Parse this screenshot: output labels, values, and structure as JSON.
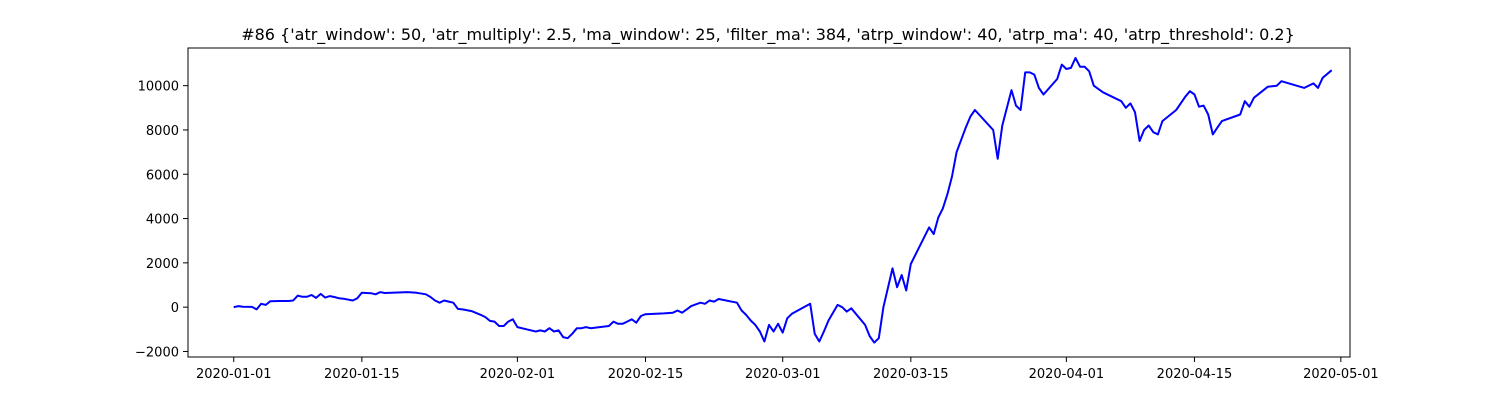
{
  "chart_data": {
    "type": "line",
    "title": "#86 {'atr_window': 50, 'atr_multiply': 2.5, 'ma_window': 25, 'filter_ma': 384, 'atrp_window': 40, 'atrp_ma': 40, 'atrp_threshold': 0.2}",
    "xlabel": "",
    "ylabel": "",
    "xlim": [
      "2019-12-27",
      "2020-05-02"
    ],
    "ylim": [
      -2250,
      11700
    ],
    "x_ticks": [
      "2020-01-01",
      "2020-01-15",
      "2020-02-01",
      "2020-02-15",
      "2020-03-01",
      "2020-03-15",
      "2020-04-01",
      "2020-04-15",
      "2020-05-01"
    ],
    "y_ticks": [
      -2000,
      0,
      2000,
      4000,
      6000,
      8000,
      10000
    ],
    "grid": false,
    "legend": "none",
    "series": [
      {
        "color": "#0000ff",
        "points": [
          [
            "2020-01-01",
            0
          ],
          [
            "2020-01-01T12:00",
            50
          ],
          [
            "2020-01-02",
            20
          ],
          [
            "2020-01-03",
            10
          ],
          [
            "2020-01-03T12:00",
            -100
          ],
          [
            "2020-01-04",
            150
          ],
          [
            "2020-01-04T12:00",
            100
          ],
          [
            "2020-01-05",
            270
          ],
          [
            "2020-01-06",
            280
          ],
          [
            "2020-01-07",
            280
          ],
          [
            "2020-01-07T12:00",
            300
          ],
          [
            "2020-01-08",
            520
          ],
          [
            "2020-01-08T12:00",
            470
          ],
          [
            "2020-01-09",
            470
          ],
          [
            "2020-01-09T12:00",
            550
          ],
          [
            "2020-01-10",
            420
          ],
          [
            "2020-01-10T12:00",
            600
          ],
          [
            "2020-01-11",
            430
          ],
          [
            "2020-01-11T12:00",
            500
          ],
          [
            "2020-01-12",
            460
          ],
          [
            "2020-01-12T12:00",
            400
          ],
          [
            "2020-01-13",
            380
          ],
          [
            "2020-01-14",
            300
          ],
          [
            "2020-01-14T12:00",
            400
          ],
          [
            "2020-01-15",
            650
          ],
          [
            "2020-01-16",
            630
          ],
          [
            "2020-01-16T12:00",
            580
          ],
          [
            "2020-01-17",
            680
          ],
          [
            "2020-01-17T12:00",
            640
          ],
          [
            "2020-01-20",
            680
          ],
          [
            "2020-01-21",
            650
          ],
          [
            "2020-01-22",
            580
          ],
          [
            "2020-01-22T12:00",
            460
          ],
          [
            "2020-01-23",
            300
          ],
          [
            "2020-01-23T12:00",
            200
          ],
          [
            "2020-01-24",
            300
          ],
          [
            "2020-01-24T12:00",
            250
          ],
          [
            "2020-01-25",
            200
          ],
          [
            "2020-01-25T12:00",
            -80
          ],
          [
            "2020-01-26",
            -100
          ],
          [
            "2020-01-27",
            -180
          ],
          [
            "2020-01-28",
            -350
          ],
          [
            "2020-01-28T12:00",
            -450
          ],
          [
            "2020-01-29",
            -620
          ],
          [
            "2020-01-29T12:00",
            -650
          ],
          [
            "2020-01-30",
            -850
          ],
          [
            "2020-01-30T12:00",
            -850
          ],
          [
            "2020-01-31",
            -650
          ],
          [
            "2020-01-31T12:00",
            -550
          ],
          [
            "2020-02-01",
            -900
          ],
          [
            "2020-02-02",
            -1000
          ],
          [
            "2020-02-03",
            -1100
          ],
          [
            "2020-02-03T12:00",
            -1050
          ],
          [
            "2020-02-04",
            -1100
          ],
          [
            "2020-02-04T12:00",
            -950
          ],
          [
            "2020-02-05",
            -1100
          ],
          [
            "2020-02-05T12:00",
            -1050
          ],
          [
            "2020-02-06",
            -1350
          ],
          [
            "2020-02-06T12:00",
            -1400
          ],
          [
            "2020-02-07",
            -1200
          ],
          [
            "2020-02-07T12:00",
            -950
          ],
          [
            "2020-02-08",
            -950
          ],
          [
            "2020-02-08T12:00",
            -900
          ],
          [
            "2020-02-09",
            -950
          ],
          [
            "2020-02-10",
            -900
          ],
          [
            "2020-02-11",
            -850
          ],
          [
            "2020-02-11T12:00",
            -650
          ],
          [
            "2020-02-12",
            -750
          ],
          [
            "2020-02-12T12:00",
            -750
          ],
          [
            "2020-02-13",
            -650
          ],
          [
            "2020-02-13T12:00",
            -550
          ],
          [
            "2020-02-14",
            -700
          ],
          [
            "2020-02-14T12:00",
            -400
          ],
          [
            "2020-02-15",
            -320
          ],
          [
            "2020-02-17",
            -280
          ],
          [
            "2020-02-18",
            -250
          ],
          [
            "2020-02-18T12:00",
            -150
          ],
          [
            "2020-02-19",
            -250
          ],
          [
            "2020-02-19T12:00",
            -100
          ],
          [
            "2020-02-20",
            50
          ],
          [
            "2020-02-21",
            200
          ],
          [
            "2020-02-21T12:00",
            150
          ],
          [
            "2020-02-22",
            300
          ],
          [
            "2020-02-22T12:00",
            250
          ],
          [
            "2020-02-23",
            370
          ],
          [
            "2020-02-25",
            200
          ],
          [
            "2020-02-25T12:00",
            -150
          ],
          [
            "2020-02-26",
            -350
          ],
          [
            "2020-02-26T12:00",
            -600
          ],
          [
            "2020-02-27",
            -800
          ],
          [
            "2020-02-27T12:00",
            -1100
          ],
          [
            "2020-02-28",
            -1550
          ],
          [
            "2020-02-28T12:00",
            -800
          ],
          [
            "2020-02-29",
            -1100
          ],
          [
            "2020-02-29T12:00",
            -750
          ],
          [
            "2020-03-01",
            -1150
          ],
          [
            "2020-03-01T12:00",
            -500
          ],
          [
            "2020-03-02",
            -300
          ],
          [
            "2020-03-04",
            150
          ],
          [
            "2020-03-04T12:00",
            -1200
          ],
          [
            "2020-03-05",
            -1550
          ],
          [
            "2020-03-05T12:00",
            -1100
          ],
          [
            "2020-03-06",
            -600
          ],
          [
            "2020-03-07",
            100
          ],
          [
            "2020-03-07T12:00",
            0
          ],
          [
            "2020-03-08",
            -200
          ],
          [
            "2020-03-08T12:00",
            -50
          ],
          [
            "2020-03-10",
            -800
          ],
          [
            "2020-03-10T12:00",
            -1300
          ],
          [
            "2020-03-11",
            -1600
          ],
          [
            "2020-03-11T12:00",
            -1400
          ],
          [
            "2020-03-12",
            0
          ],
          [
            "2020-03-13",
            1750
          ],
          [
            "2020-03-13T12:00",
            900
          ],
          [
            "2020-03-14",
            1450
          ],
          [
            "2020-03-14T12:00",
            750
          ],
          [
            "2020-03-15",
            1950
          ],
          [
            "2020-03-17",
            3600
          ],
          [
            "2020-03-17T12:00",
            3300
          ],
          [
            "2020-03-18",
            4050
          ],
          [
            "2020-03-18T12:00",
            4450
          ],
          [
            "2020-03-19",
            5100
          ],
          [
            "2020-03-19T12:00",
            5900
          ],
          [
            "2020-03-20",
            7000
          ],
          [
            "2020-03-21",
            8100
          ],
          [
            "2020-03-21T12:00",
            8600
          ],
          [
            "2020-03-22",
            8900
          ],
          [
            "2020-03-24",
            8000
          ],
          [
            "2020-03-24T12:00",
            6700
          ],
          [
            "2020-03-25",
            8200
          ],
          [
            "2020-03-26",
            9800
          ],
          [
            "2020-03-26T12:00",
            9100
          ],
          [
            "2020-03-27",
            8900
          ],
          [
            "2020-03-27T12:00",
            10600
          ],
          [
            "2020-03-28",
            10600
          ],
          [
            "2020-03-28T12:00",
            10500
          ],
          [
            "2020-03-29",
            9900
          ],
          [
            "2020-03-29T12:00",
            9600
          ],
          [
            "2020-03-31",
            10300
          ],
          [
            "2020-03-31T12:00",
            10950
          ],
          [
            "2020-04-01",
            10750
          ],
          [
            "2020-04-01T12:00",
            10800
          ],
          [
            "2020-04-02",
            11250
          ],
          [
            "2020-04-02T12:00",
            10850
          ],
          [
            "2020-04-03",
            10850
          ],
          [
            "2020-04-03T12:00",
            10650
          ],
          [
            "2020-04-04",
            10000
          ],
          [
            "2020-04-05",
            9700
          ],
          [
            "2020-04-07",
            9300
          ],
          [
            "2020-04-07T12:00",
            9000
          ],
          [
            "2020-04-08",
            9200
          ],
          [
            "2020-04-08T12:00",
            8800
          ],
          [
            "2020-04-09",
            7500
          ],
          [
            "2020-04-09T12:00",
            8000
          ],
          [
            "2020-04-10",
            8200
          ],
          [
            "2020-04-10T12:00",
            7900
          ],
          [
            "2020-04-11",
            7800
          ],
          [
            "2020-04-11T12:00",
            8400
          ],
          [
            "2020-04-13",
            8900
          ],
          [
            "2020-04-14",
            9500
          ],
          [
            "2020-04-14T12:00",
            9750
          ],
          [
            "2020-04-15",
            9600
          ],
          [
            "2020-04-15T12:00",
            9050
          ],
          [
            "2020-04-16",
            9100
          ],
          [
            "2020-04-16T12:00",
            8700
          ],
          [
            "2020-04-17",
            7800
          ],
          [
            "2020-04-17T12:00",
            8100
          ],
          [
            "2020-04-18",
            8400
          ],
          [
            "2020-04-20",
            8700
          ],
          [
            "2020-04-20T12:00",
            9300
          ],
          [
            "2020-04-21",
            9050
          ],
          [
            "2020-04-21T12:00",
            9450
          ],
          [
            "2020-04-23",
            9950
          ],
          [
            "2020-04-24",
            10000
          ],
          [
            "2020-04-24T12:00",
            10200
          ],
          [
            "2020-04-27",
            9900
          ],
          [
            "2020-04-28",
            10100
          ],
          [
            "2020-04-28T12:00",
            9900
          ],
          [
            "2020-04-29",
            10350
          ],
          [
            "2020-04-30",
            10700
          ]
        ]
      }
    ]
  }
}
